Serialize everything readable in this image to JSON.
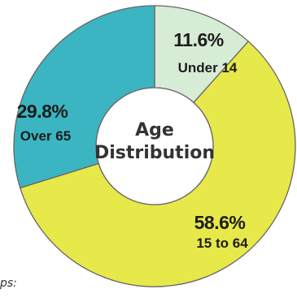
{
  "chart_data": {
    "type": "pie",
    "title": "Age Distribution",
    "donut": true,
    "categories": [
      "Under 14",
      "15 to 64",
      "Over 65"
    ],
    "values": [
      11.6,
      58.6,
      29.8
    ],
    "labels": [
      "11.6%",
      "58.6%",
      "29.8%"
    ],
    "colors": [
      "#d7ecd5",
      "#e7e84a",
      "#3bb5c1"
    ]
  },
  "center": {
    "line1": "Age",
    "line2": "Distribution"
  },
  "footnote": "ps:"
}
